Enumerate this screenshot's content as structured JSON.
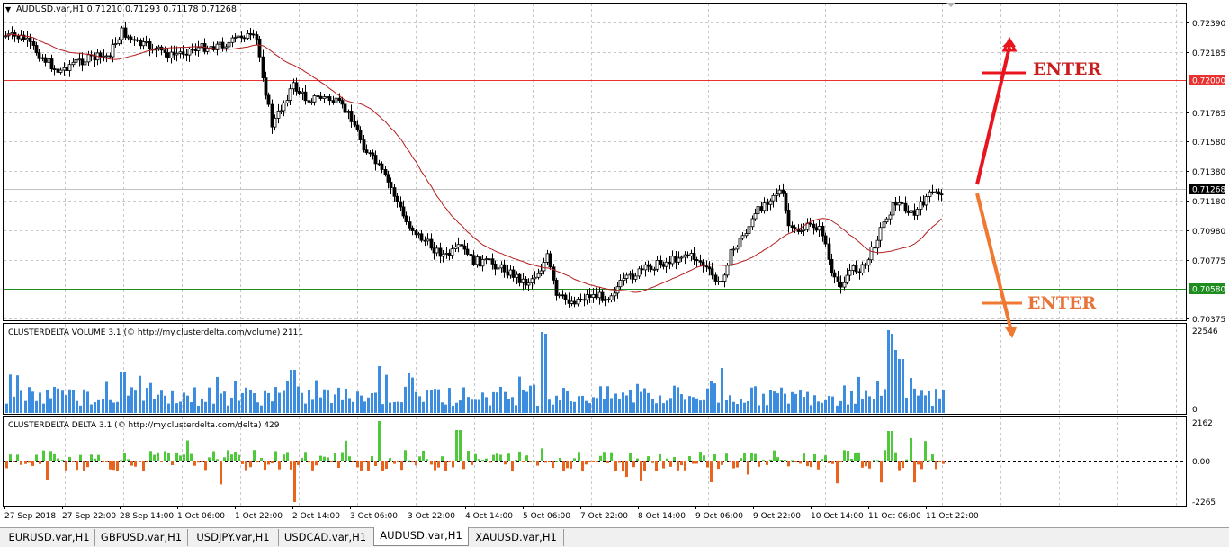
{
  "chart": {
    "header": "AUDUSD.var,H1  0.71210 0.71293 0.71178 0.71268",
    "price_axis": [
      "0.72390",
      "0.72185",
      "0.71785",
      "0.71580",
      "0.71380",
      "0.71180",
      "0.70980",
      "0.70775",
      "0.70375"
    ],
    "levels": {
      "upper": "0.72000",
      "lower": "0.70580",
      "current": "0.71268"
    },
    "annotations": {
      "up_label": "ENTER",
      "down_label": "ENTER"
    },
    "time_axis": [
      "27 Sep 2018",
      "27 Sep 22:00",
      "28 Sep 14:00",
      "1 Oct 06:00",
      "1 Oct 22:00",
      "2 Oct 14:00",
      "3 Oct 06:00",
      "3 Oct 22:00",
      "4 Oct 14:00",
      "5 Oct 06:00",
      "7 Oct 22:00",
      "8 Oct 14:00",
      "9 Oct 06:00",
      "9 Oct 22:00",
      "10 Oct 14:00",
      "11 Oct 06:00",
      "11 Oct 22:00"
    ]
  },
  "volume": {
    "label": "CLUSTERDELTA VOLUME 3.1 (© http://my.clusterdelta.com/volume) 2111",
    "axis": [
      "22546",
      "0"
    ]
  },
  "delta": {
    "label": "CLUSTERDELTA DELTA 3.1 (© http://my.clusterdelta.com/delta) 429",
    "axis": [
      "2162",
      "0.00",
      "-2265"
    ]
  },
  "tabs": [
    "EURUSD.var,H1",
    "GBPUSD.var,H1",
    "USDJPY.var,H1",
    "USDCAD.var,H1",
    "AUDUSD.var,H1",
    "XAUUSD.var,H1"
  ],
  "active_tab": "AUDUSD.var,H1",
  "colors": {
    "up_arrow": "#e8141e",
    "down_arrow": "#f07830",
    "enter_up": "#c81e1e",
    "enter_down": "#e8743a",
    "volume_bar": "#3c8ce0",
    "delta_pos": "#50c83c",
    "delta_neg": "#e8641e",
    "ma": "#b41e1e",
    "level_high": "#e83232",
    "level_low": "#1e8c1e"
  }
}
